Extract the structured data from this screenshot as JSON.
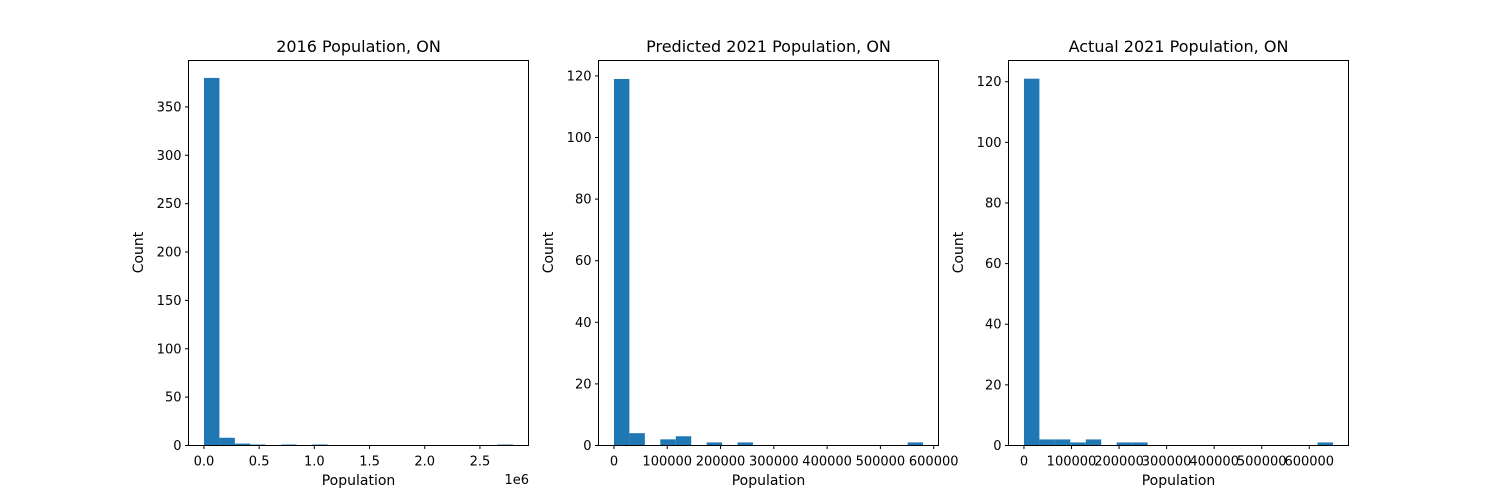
{
  "chart_data": [
    {
      "type": "bar",
      "title": "2016 Population, ON",
      "xlabel": "Population",
      "ylabel": "Count",
      "offset_text": "1e6",
      "xlim": [
        -0.14,
        2.94
      ],
      "ylim": [
        0,
        398
      ],
      "x_ticks": [
        0.0,
        0.5,
        1.0,
        1.5,
        2.0,
        2.5
      ],
      "x_tick_labels": [
        "0.0",
        "0.5",
        "1.0",
        "1.5",
        "2.0",
        "2.5"
      ],
      "y_ticks": [
        0,
        50,
        100,
        150,
        200,
        250,
        300,
        350
      ],
      "y_tick_labels": [
        "0",
        "50",
        "100",
        "150",
        "200",
        "250",
        "300",
        "350"
      ],
      "bin_edges": [
        0.0,
        0.14,
        0.28,
        0.42,
        0.56,
        0.7,
        0.84,
        0.98,
        1.12,
        1.26,
        1.4,
        1.54,
        1.68,
        1.82,
        1.96,
        2.1,
        2.24,
        2.38,
        2.52,
        2.66,
        2.8
      ],
      "counts": [
        380,
        8,
        2,
        1,
        0,
        1,
        0,
        1,
        0,
        0,
        0,
        0,
        0,
        0,
        0,
        0,
        0,
        0,
        0,
        1
      ],
      "color": "#1f77b4"
    },
    {
      "type": "bar",
      "title": "Predicted 2021 Population, ON",
      "xlabel": "Population",
      "ylabel": "Count",
      "offset_text": "",
      "xlim": [
        -29000,
        609000
      ],
      "ylim": [
        0,
        125
      ],
      "x_ticks": [
        0,
        100000,
        200000,
        300000,
        400000,
        500000,
        600000
      ],
      "x_tick_labels": [
        "0",
        "100000",
        "200000",
        "300000",
        "400000",
        "500000",
        "600000"
      ],
      "y_ticks": [
        0,
        20,
        40,
        60,
        80,
        100,
        120
      ],
      "y_tick_labels": [
        "0",
        "20",
        "40",
        "60",
        "80",
        "100",
        "120"
      ],
      "bin_edges": [
        0,
        29000,
        58000,
        87000,
        116000,
        145000,
        174000,
        203000,
        232000,
        261000,
        290000,
        319000,
        348000,
        377000,
        406000,
        435000,
        464000,
        493000,
        522000,
        551000,
        580000
      ],
      "counts": [
        119,
        4,
        0,
        2,
        3,
        0,
        1,
        0,
        1,
        0,
        0,
        0,
        0,
        0,
        0,
        0,
        0,
        0,
        0,
        1
      ],
      "color": "#1f77b4"
    },
    {
      "type": "bar",
      "title": "Actual 2021 Population, ON",
      "xlabel": "Population",
      "ylabel": "Count",
      "offset_text": "",
      "xlim": [
        -32500,
        682500
      ],
      "ylim": [
        0,
        127
      ],
      "x_ticks": [
        0,
        100000,
        200000,
        300000,
        400000,
        500000,
        600000
      ],
      "x_tick_labels": [
        "0",
        "100000",
        "200000",
        "300000",
        "400000",
        "500000",
        "600000"
      ],
      "y_ticks": [
        0,
        20,
        40,
        60,
        80,
        100,
        120
      ],
      "y_tick_labels": [
        "0",
        "20",
        "40",
        "60",
        "80",
        "100",
        "120"
      ],
      "bin_edges": [
        0,
        32500,
        65000,
        97500,
        130000,
        162500,
        195000,
        227500,
        260000,
        292500,
        325000,
        357500,
        390000,
        422500,
        455000,
        487500,
        520000,
        552500,
        585000,
        617500,
        650000
      ],
      "counts": [
        121,
        2,
        2,
        1,
        2,
        0,
        1,
        1,
        0,
        0,
        0,
        0,
        0,
        0,
        0,
        0,
        0,
        0,
        0,
        1
      ],
      "color": "#1f77b4"
    }
  ]
}
